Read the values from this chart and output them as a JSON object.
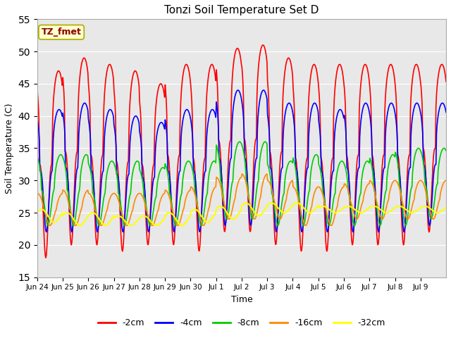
{
  "title": "Tonzi Soil Temperature Set D",
  "xlabel": "Time",
  "ylabel": "Soil Temperature (C)",
  "ylim": [
    15,
    55
  ],
  "yticks": [
    15,
    20,
    25,
    30,
    35,
    40,
    45,
    50,
    55
  ],
  "background_color": "#e8e8e8",
  "annotation_text": "TZ_fmet",
  "annotation_color": "#8b0000",
  "annotation_bg": "#ffffcc",
  "line_colors": {
    "-2cm": "#ff0000",
    "-4cm": "#0000ff",
    "-8cm": "#00cc00",
    "-16cm": "#ff8800",
    "-32cm": "#ffff00"
  },
  "tick_labels": [
    "Jun 24",
    "Jun 25",
    "Jun 26",
    "Jun 27",
    "Jun 28",
    "Jun 29",
    "Jun 30",
    "Jul 1",
    "Jul 2",
    "Jul 3",
    "Jul 4",
    "Jul 5",
    "Jul 6",
    "Jul 7",
    "Jul 8",
    "Jul 9"
  ]
}
